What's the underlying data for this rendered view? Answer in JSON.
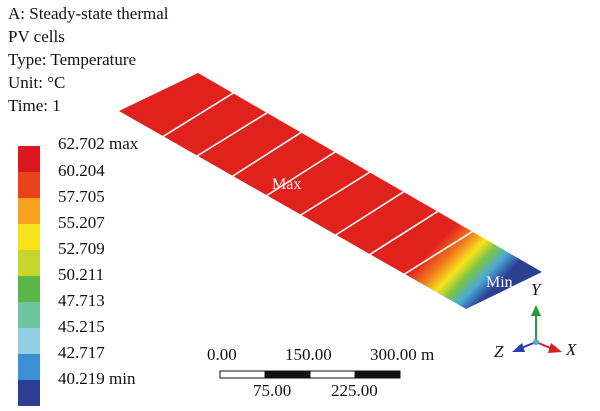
{
  "header": {
    "line1": "A: Steady-state thermal",
    "line2": "PV cells",
    "line3": "Type: Temperature",
    "line4": "Unit: °C",
    "line5": "Time: 1"
  },
  "legend": {
    "entries": [
      {
        "label": "62.702 max",
        "color": "#d9181f"
      },
      {
        "label": "60.204",
        "color": "#e8431b"
      },
      {
        "label": "57.705",
        "color": "#f5a11d"
      },
      {
        "label": "55.207",
        "color": "#f7e21b"
      },
      {
        "label": "52.709",
        "color": "#c5d52e"
      },
      {
        "label": "50.211",
        "color": "#5bb547"
      },
      {
        "label": "47.713",
        "color": "#6fc4a2"
      },
      {
        "label": "45.215",
        "color": "#8ed0e2"
      },
      {
        "label": "42.717",
        "color": "#3c8fd3"
      },
      {
        "label": "40.219 min",
        "color": "#2c3f93"
      }
    ]
  },
  "model": {
    "max_label": "Max",
    "min_label": "Min",
    "panel_color": "#e0211c",
    "cells": 10
  },
  "scale": {
    "top_labels": [
      "0.00",
      "150.00",
      "300.00 m"
    ],
    "bottom_labels": [
      "75.00",
      "225.00"
    ]
  },
  "triad": {
    "x": "X",
    "y": "Y",
    "z": "Z",
    "x_color": "#d62020",
    "y_color": "#2a9a3a",
    "z_color": "#2a3fae"
  }
}
